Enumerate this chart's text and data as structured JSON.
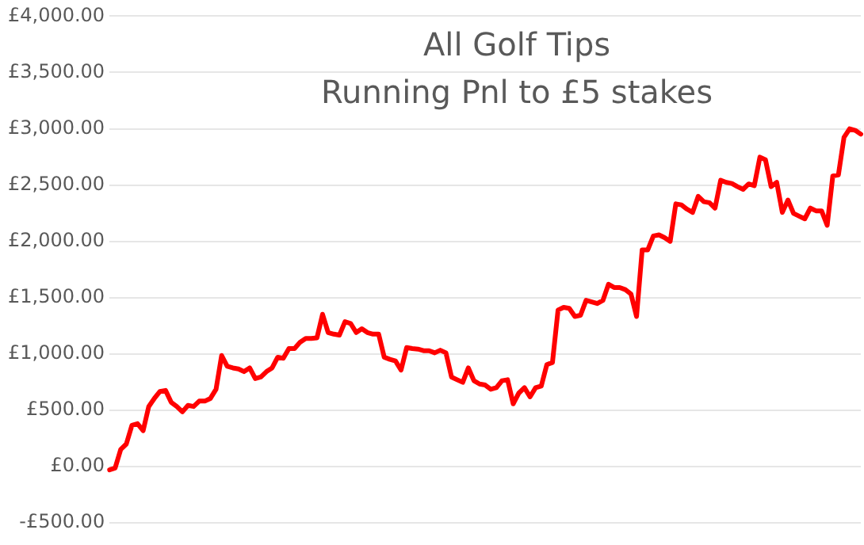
{
  "chart_data": {
    "type": "line",
    "title": "All Golf Tips",
    "subtitle": "Running Pnl to £5 stakes",
    "categories": [
      null,
      null,
      null,
      null,
      null,
      null,
      null,
      null,
      null,
      null,
      null,
      null,
      null,
      null,
      null,
      null,
      null,
      null,
      null,
      null,
      null,
      null,
      null,
      null,
      null,
      null,
      null,
      null,
      null,
      null,
      null,
      null,
      null,
      null,
      null,
      null,
      null,
      null,
      null,
      null,
      null,
      null,
      null,
      null,
      null,
      null,
      null,
      null,
      null,
      null,
      null,
      null,
      null,
      null,
      null,
      null,
      null,
      null,
      null,
      null,
      null,
      null,
      null,
      null,
      null,
      null,
      null,
      null,
      null,
      null,
      null,
      null,
      null,
      null,
      null,
      null,
      null,
      null,
      null,
      null,
      null,
      null,
      null,
      null,
      null,
      null,
      null,
      null,
      null,
      null,
      null,
      null,
      null,
      null,
      null,
      null,
      null,
      null,
      null,
      null,
      null,
      null,
      null,
      null,
      null,
      null,
      null,
      null,
      null,
      null,
      null,
      null,
      null,
      null,
      null,
      null,
      null,
      null,
      null,
      null,
      null,
      null,
      null,
      null,
      null,
      null,
      null,
      null,
      null,
      null,
      null,
      null,
      null,
      null,
      null
    ],
    "series": [
      {
        "color": "#ff0000",
        "values": [
          -29,
          -14,
          152,
          200,
          367,
          381,
          319,
          533,
          605,
          667,
          676,
          571,
          533,
          486,
          543,
          533,
          581,
          581,
          605,
          686,
          986,
          890,
          876,
          867,
          843,
          876,
          781,
          795,
          843,
          876,
          971,
          962,
          1048,
          1048,
          1105,
          1138,
          1138,
          1143,
          1352,
          1190,
          1176,
          1167,
          1286,
          1271,
          1190,
          1224,
          1190,
          1176,
          1176,
          971,
          952,
          938,
          857,
          1057,
          1048,
          1043,
          1029,
          1029,
          1010,
          1033,
          1010,
          795,
          771,
          748,
          876,
          762,
          733,
          724,
          686,
          700,
          762,
          771,
          557,
          652,
          700,
          619,
          700,
          714,
          905,
          924,
          1390,
          1414,
          1405,
          1333,
          1343,
          1476,
          1462,
          1448,
          1476,
          1619,
          1590,
          1590,
          1571,
          1533,
          1333,
          1924,
          1924,
          2048,
          2057,
          2033,
          2000,
          2333,
          2324,
          2286,
          2257,
          2400,
          2352,
          2343,
          2295,
          2543,
          2524,
          2514,
          2486,
          2462,
          2510,
          2495,
          2748,
          2724,
          2486,
          2524,
          2257,
          2367,
          2248,
          2224,
          2200,
          2295,
          2271,
          2271,
          2143,
          2581,
          2590,
          2924,
          3000,
          2986,
          2952
        ]
      }
    ],
    "ylim": [
      -500,
      4000
    ],
    "yticks": [
      {
        "value": -500,
        "label": "-£500.00"
      },
      {
        "value": 0,
        "label": "£0.00"
      },
      {
        "value": 500,
        "label": "£500.00"
      },
      {
        "value": 1000,
        "label": "£1,000.00"
      },
      {
        "value": 1500,
        "label": "£1,500.00"
      },
      {
        "value": 2000,
        "label": "£2,000.00"
      },
      {
        "value": 2500,
        "label": "£2,500.00"
      },
      {
        "value": 3000,
        "label": "£3,000.00"
      },
      {
        "value": 3500,
        "label": "£3,500.00"
      },
      {
        "value": 4000,
        "label": "£4,000.00"
      }
    ],
    "grid": "y",
    "legend": false,
    "tick_labels": "y",
    "marker": "none",
    "line_style": "solid"
  }
}
